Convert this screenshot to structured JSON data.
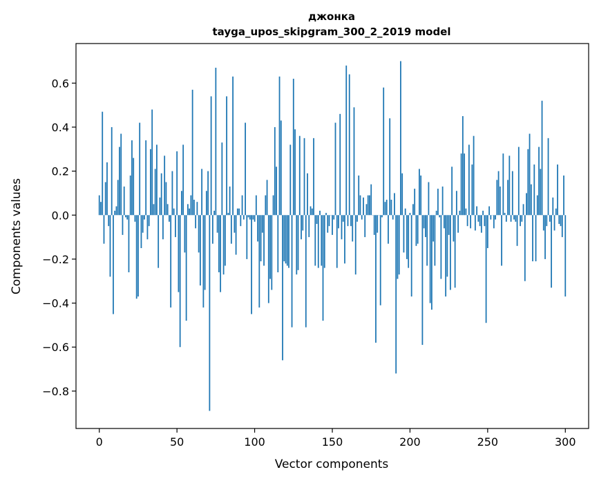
{
  "chart_data": {
    "type": "bar",
    "title_line1": "джонка",
    "title_line2": "tayga_upos_skipgram_300_2_2019 model",
    "xlabel": "Vector components",
    "ylabel": "Components values",
    "xlim": [
      -15,
      315
    ],
    "ylim": [
      -0.97,
      0.78
    ],
    "xticks": [
      {
        "value": 0,
        "label": "0"
      },
      {
        "value": 50,
        "label": "50"
      },
      {
        "value": 100,
        "label": "100"
      },
      {
        "value": 150,
        "label": "150"
      },
      {
        "value": 200,
        "label": "200"
      },
      {
        "value": 250,
        "label": "250"
      },
      {
        "value": 300,
        "label": "300"
      }
    ],
    "yticks": [
      {
        "value": 0.6,
        "label": "0.6"
      },
      {
        "value": 0.4,
        "label": "0.4"
      },
      {
        "value": 0.2,
        "label": "0.2"
      },
      {
        "value": 0.0,
        "label": "0.0"
      },
      {
        "value": -0.2,
        "label": "−0.2"
      },
      {
        "value": -0.4,
        "label": "−0.4"
      },
      {
        "value": -0.6,
        "label": "−0.6"
      },
      {
        "value": -0.8,
        "label": "−0.8"
      }
    ],
    "grid": false,
    "bar_color": "#1f77b4",
    "values": [
      0.09,
      0.06,
      0.47,
      -0.13,
      0.15,
      0.24,
      -0.05,
      -0.28,
      0.4,
      -0.45,
      0.02,
      0.04,
      0.16,
      0.31,
      0.37,
      -0.09,
      0.13,
      -0.01,
      -0.02,
      -0.26,
      0.18,
      0.34,
      0.26,
      -0.03,
      -0.38,
      -0.37,
      0.42,
      -0.15,
      -0.08,
      -0.02,
      0.34,
      -0.11,
      -0.05,
      0.3,
      0.48,
      0.05,
      0.21,
      0.32,
      -0.24,
      0.08,
      0.19,
      -0.11,
      0.27,
      0.15,
      0.05,
      -0.03,
      -0.42,
      0.2,
      0.03,
      -0.1,
      0.29,
      -0.35,
      -0.6,
      0.11,
      0.32,
      -0.17,
      -0.48,
      0.05,
      0.03,
      0.09,
      0.57,
      0.07,
      -0.06,
      0.06,
      -0.17,
      -0.32,
      0.21,
      -0.42,
      -0.34,
      0.11,
      0.2,
      -0.89,
      0.54,
      -0.13,
      0.02,
      0.67,
      -0.08,
      -0.26,
      -0.35,
      0.33,
      -0.27,
      -0.23,
      0.54,
      0.01,
      0.13,
      -0.13,
      0.63,
      -0.08,
      -0.18,
      0.03,
      0.03,
      -0.05,
      0.09,
      -0.02,
      0.42,
      -0.2,
      -0.01,
      -0.02,
      -0.45,
      -0.02,
      -0.03,
      0.09,
      -0.12,
      -0.42,
      -0.21,
      -0.08,
      -0.23,
      0.09,
      0.16,
      -0.4,
      -0.29,
      -0.34,
      0.09,
      0.4,
      0.22,
      -0.26,
      0.63,
      0.43,
      -0.66,
      -0.21,
      -0.22,
      -0.23,
      -0.24,
      0.32,
      -0.51,
      0.62,
      0.39,
      -0.27,
      -0.25,
      0.36,
      -0.11,
      -0.07,
      0.35,
      -0.51,
      0.19,
      -0.1,
      0.04,
      0.03,
      0.35,
      -0.23,
      -0.04,
      -0.24,
      0.02,
      -0.23,
      -0.48,
      -0.24,
      0.01,
      -0.08,
      -0.05,
      0.0,
      -0.09,
      -0.02,
      0.42,
      -0.24,
      -0.06,
      0.46,
      -0.11,
      -0.03,
      -0.22,
      0.68,
      -0.05,
      0.64,
      -0.05,
      -0.12,
      0.49,
      -0.27,
      -0.03,
      0.18,
      0.09,
      -0.02,
      0.08,
      -0.1,
      0.05,
      0.09,
      0.09,
      0.14,
      0.0,
      -0.09,
      -0.58,
      -0.08,
      0.0,
      -0.41,
      -0.01,
      0.58,
      0.06,
      0.07,
      -0.13,
      0.44,
      0.07,
      -0.02,
      0.1,
      -0.72,
      -0.29,
      -0.27,
      0.7,
      0.19,
      -0.17,
      0.03,
      -0.2,
      -0.24,
      0.01,
      -0.37,
      0.05,
      0.12,
      -0.14,
      -0.13,
      0.21,
      0.18,
      -0.59,
      -0.06,
      -0.1,
      -0.23,
      0.15,
      -0.4,
      -0.43,
      -0.12,
      -0.23,
      0.02,
      0.12,
      -0.01,
      -0.29,
      0.13,
      -0.06,
      -0.37,
      -0.28,
      -0.09,
      -0.34,
      0.22,
      -0.12,
      -0.33,
      0.11,
      -0.08,
      0.02,
      0.28,
      0.45,
      0.28,
      0.03,
      -0.05,
      0.32,
      -0.06,
      0.23,
      0.36,
      -0.07,
      0.04,
      -0.03,
      -0.05,
      -0.08,
      0.02,
      -0.05,
      -0.49,
      -0.15,
      0.04,
      -0.02,
      0.0,
      -0.06,
      -0.02,
      0.16,
      0.2,
      0.13,
      -0.23,
      0.28,
      0.01,
      -0.03,
      0.16,
      0.27,
      -0.03,
      0.2,
      -0.02,
      -0.03,
      -0.14,
      0.31,
      -0.05,
      -0.03,
      0.05,
      -0.3,
      0.1,
      0.3,
      0.37,
      0.14,
      -0.21,
      0.23,
      -0.21,
      0.09,
      0.31,
      0.21,
      0.52,
      -0.07,
      -0.2,
      -0.05,
      0.35,
      -0.03,
      -0.33,
      0.08,
      -0.07,
      0.03,
      0.23,
      -0.04,
      -0.05,
      -0.1,
      0.18,
      -0.37
    ]
  }
}
